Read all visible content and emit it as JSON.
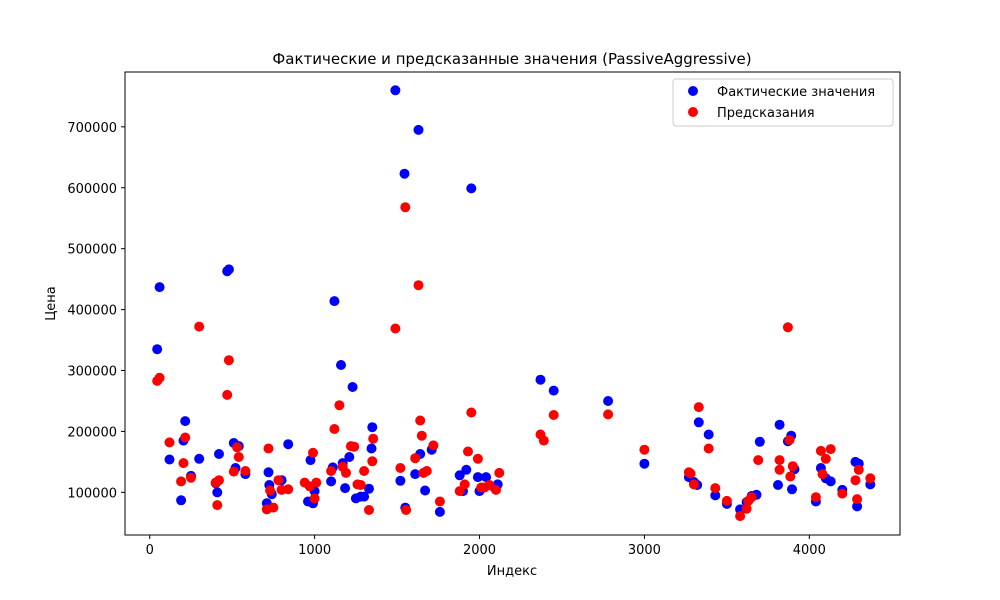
{
  "chart_data": {
    "type": "scatter",
    "title": "Фактические и предсказанные значения (PassiveAggressive)",
    "xlabel": "Индекс",
    "ylabel": "Цена",
    "xlim": [
      -150,
      4550
    ],
    "ylim": [
      30000,
      790000
    ],
    "xticks": [
      0,
      1000,
      2000,
      3000,
      4000
    ],
    "yticks": [
      100000,
      200000,
      300000,
      400000,
      500000,
      600000,
      700000
    ],
    "grid": false,
    "legend_position": "top-right",
    "series": [
      {
        "name": "Фактические значения",
        "color": "#0000ff",
        "points": [
          [
            45,
            335000
          ],
          [
            60,
            437000
          ],
          [
            120,
            154000
          ],
          [
            190,
            87000
          ],
          [
            205,
            185000
          ],
          [
            215,
            217000
          ],
          [
            250,
            127000
          ],
          [
            300,
            155000
          ],
          [
            400,
            115000
          ],
          [
            410,
            100000
          ],
          [
            420,
            163000
          ],
          [
            470,
            463000
          ],
          [
            480,
            466000
          ],
          [
            510,
            181000
          ],
          [
            520,
            140000
          ],
          [
            540,
            176000
          ],
          [
            580,
            130000
          ],
          [
            710,
            82000
          ],
          [
            720,
            133000
          ],
          [
            725,
            112000
          ],
          [
            740,
            97000
          ],
          [
            800,
            120000
          ],
          [
            840,
            179000
          ],
          [
            960,
            85000
          ],
          [
            975,
            153000
          ],
          [
            990,
            82000
          ],
          [
            1000,
            102000
          ],
          [
            1100,
            118000
          ],
          [
            1110,
            141000
          ],
          [
            1120,
            414000
          ],
          [
            1160,
            309000
          ],
          [
            1170,
            148000
          ],
          [
            1185,
            107000
          ],
          [
            1210,
            158000
          ],
          [
            1230,
            273000
          ],
          [
            1250,
            90000
          ],
          [
            1280,
            93000
          ],
          [
            1300,
            93000
          ],
          [
            1330,
            106000
          ],
          [
            1345,
            172000
          ],
          [
            1350,
            207000
          ],
          [
            1490,
            760000
          ],
          [
            1520,
            119000
          ],
          [
            1545,
            623000
          ],
          [
            1550,
            75000
          ],
          [
            1610,
            130000
          ],
          [
            1630,
            695000
          ],
          [
            1640,
            163000
          ],
          [
            1670,
            103000
          ],
          [
            1710,
            170000
          ],
          [
            1760,
            68000
          ],
          [
            1880,
            128000
          ],
          [
            1900,
            102000
          ],
          [
            1920,
            137000
          ],
          [
            1950,
            599000
          ],
          [
            1990,
            125000
          ],
          [
            2000,
            102000
          ],
          [
            2040,
            125000
          ],
          [
            2090,
            108000
          ],
          [
            2110,
            113000
          ],
          [
            2370,
            285000
          ],
          [
            2450,
            267000
          ],
          [
            2780,
            250000
          ],
          [
            3000,
            147000
          ],
          [
            3270,
            125000
          ],
          [
            3300,
            117000
          ],
          [
            3320,
            112000
          ],
          [
            3330,
            215000
          ],
          [
            3390,
            195000
          ],
          [
            3430,
            95000
          ],
          [
            3500,
            81000
          ],
          [
            3580,
            72000
          ],
          [
            3620,
            84000
          ],
          [
            3650,
            94000
          ],
          [
            3680,
            96000
          ],
          [
            3700,
            183000
          ],
          [
            3810,
            112000
          ],
          [
            3820,
            211000
          ],
          [
            3870,
            184000
          ],
          [
            3890,
            193000
          ],
          [
            3895,
            105000
          ],
          [
            3910,
            138000
          ],
          [
            4040,
            85000
          ],
          [
            4070,
            140000
          ],
          [
            4100,
            123000
          ],
          [
            4130,
            118000
          ],
          [
            4200,
            104000
          ],
          [
            4280,
            150000
          ],
          [
            4300,
            147000
          ],
          [
            4290,
            77000
          ],
          [
            4370,
            113000
          ]
        ]
      },
      {
        "name": "Предсказания",
        "color": "#ff0000",
        "points": [
          [
            45,
            283000
          ],
          [
            60,
            288000
          ],
          [
            120,
            182000
          ],
          [
            190,
            118000
          ],
          [
            205,
            148000
          ],
          [
            215,
            190000
          ],
          [
            250,
            124000
          ],
          [
            300,
            372000
          ],
          [
            400,
            116000
          ],
          [
            410,
            79000
          ],
          [
            420,
            120000
          ],
          [
            470,
            260000
          ],
          [
            480,
            317000
          ],
          [
            510,
            134000
          ],
          [
            530,
            174000
          ],
          [
            540,
            158000
          ],
          [
            580,
            135000
          ],
          [
            710,
            72000
          ],
          [
            720,
            172000
          ],
          [
            730,
            103000
          ],
          [
            750,
            75000
          ],
          [
            780,
            120000
          ],
          [
            800,
            104000
          ],
          [
            840,
            105000
          ],
          [
            940,
            116000
          ],
          [
            970,
            110000
          ],
          [
            990,
            165000
          ],
          [
            1000,
            90000
          ],
          [
            1010,
            116000
          ],
          [
            1100,
            135000
          ],
          [
            1120,
            204000
          ],
          [
            1150,
            243000
          ],
          [
            1170,
            142000
          ],
          [
            1190,
            132000
          ],
          [
            1220,
            176000
          ],
          [
            1240,
            175000
          ],
          [
            1260,
            113000
          ],
          [
            1280,
            112000
          ],
          [
            1300,
            135000
          ],
          [
            1330,
            71000
          ],
          [
            1350,
            151000
          ],
          [
            1355,
            188000
          ],
          [
            1490,
            369000
          ],
          [
            1520,
            140000
          ],
          [
            1550,
            568000
          ],
          [
            1555,
            71000
          ],
          [
            1610,
            156000
          ],
          [
            1630,
            440000
          ],
          [
            1640,
            218000
          ],
          [
            1650,
            193000
          ],
          [
            1660,
            132000
          ],
          [
            1680,
            135000
          ],
          [
            1720,
            177000
          ],
          [
            1760,
            85000
          ],
          [
            1880,
            102000
          ],
          [
            1910,
            113000
          ],
          [
            1930,
            167000
          ],
          [
            1950,
            231000
          ],
          [
            1990,
            155000
          ],
          [
            2010,
            108000
          ],
          [
            2030,
            108000
          ],
          [
            2060,
            112000
          ],
          [
            2100,
            104000
          ],
          [
            2120,
            132000
          ],
          [
            2370,
            195000
          ],
          [
            2390,
            185000
          ],
          [
            2450,
            227000
          ],
          [
            2780,
            228000
          ],
          [
            3000,
            170000
          ],
          [
            3270,
            133000
          ],
          [
            3280,
            131000
          ],
          [
            3300,
            113000
          ],
          [
            3330,
            240000
          ],
          [
            3390,
            172000
          ],
          [
            3430,
            107000
          ],
          [
            3500,
            86000
          ],
          [
            3580,
            61000
          ],
          [
            3620,
            73000
          ],
          [
            3630,
            86000
          ],
          [
            3650,
            92000
          ],
          [
            3690,
            153000
          ],
          [
            3820,
            153000
          ],
          [
            3820,
            137000
          ],
          [
            3870,
            371000
          ],
          [
            3880,
            186000
          ],
          [
            3885,
            126000
          ],
          [
            3900,
            143000
          ],
          [
            4040,
            92000
          ],
          [
            4070,
            168000
          ],
          [
            4080,
            130000
          ],
          [
            4100,
            155000
          ],
          [
            4130,
            171000
          ],
          [
            4200,
            98000
          ],
          [
            4280,
            120000
          ],
          [
            4290,
            89000
          ],
          [
            4300,
            137000
          ],
          [
            4370,
            123000
          ]
        ]
      }
    ]
  }
}
